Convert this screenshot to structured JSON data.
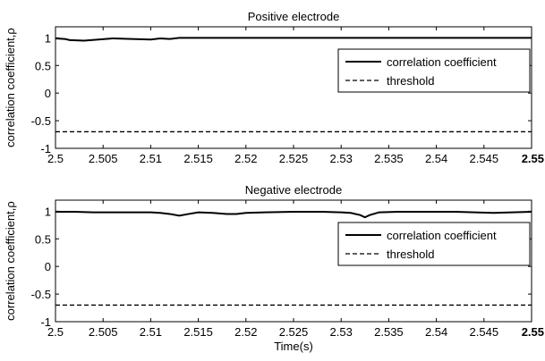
{
  "chart_data": [
    {
      "type": "line",
      "title": "Positive electrode",
      "xlabel": "",
      "ylabel": "correlation coefficient,ρ",
      "xlim": [
        2.5,
        2.55
      ],
      "ylim": [
        -1,
        1.2
      ],
      "xticks": [
        2.5,
        2.505,
        2.51,
        2.515,
        2.52,
        2.525,
        2.53,
        2.535,
        2.54,
        2.545,
        2.55
      ],
      "xtick_labels": [
        "2.5",
        "2.505",
        "2.51",
        "2.515",
        "2.52",
        "2.525",
        "2.53",
        "2.535",
        "2.54",
        "2.545",
        "2.55"
      ],
      "yticks": [
        -1,
        -0.5,
        0,
        0.5,
        1
      ],
      "ytick_labels": [
        "-1",
        "-0.5",
        "0",
        "0.5",
        "1"
      ],
      "legend": "right",
      "series": [
        {
          "name": "correlation coefficient",
          "style": "solid",
          "x": [
            2.5,
            2.501,
            2.5015,
            2.503,
            2.5045,
            2.506,
            2.508,
            2.51,
            2.511,
            2.512,
            2.513,
            2.515,
            2.52,
            2.525,
            2.53,
            2.535,
            2.54,
            2.545,
            2.55
          ],
          "y": [
            0.99,
            0.98,
            0.96,
            0.95,
            0.97,
            0.99,
            0.98,
            0.97,
            0.99,
            0.98,
            1.0,
            1.0,
            1.0,
            1.0,
            1.0,
            1.0,
            1.0,
            1.0,
            1.0
          ]
        },
        {
          "name": "threshold",
          "style": "dashed",
          "x": [
            2.5,
            2.55
          ],
          "y": [
            -0.7,
            -0.7
          ]
        }
      ]
    },
    {
      "type": "line",
      "title": "Negative electrode",
      "xlabel": "Time(s)",
      "ylabel": "correlation coefficient,ρ",
      "xlim": [
        2.5,
        2.55
      ],
      "ylim": [
        -1,
        1.2
      ],
      "xticks": [
        2.5,
        2.505,
        2.51,
        2.515,
        2.52,
        2.525,
        2.53,
        2.535,
        2.54,
        2.545,
        2.55
      ],
      "xtick_labels": [
        "2.5",
        "2.505",
        "2.51",
        "2.515",
        "2.52",
        "2.525",
        "2.53",
        "2.535",
        "2.54",
        "2.545",
        "2.55"
      ],
      "yticks": [
        -1,
        -0.5,
        0,
        0.5,
        1
      ],
      "ytick_labels": [
        "-1",
        "-0.5",
        "0",
        "0.5",
        "1"
      ],
      "legend": "right",
      "series": [
        {
          "name": "correlation coefficient",
          "style": "solid",
          "x": [
            2.5,
            2.502,
            2.504,
            2.506,
            2.508,
            2.51,
            2.511,
            2.512,
            2.513,
            2.514,
            2.515,
            2.5165,
            2.518,
            2.519,
            2.52,
            2.522,
            2.525,
            2.528,
            2.53,
            2.531,
            2.532,
            2.5325,
            2.533,
            2.534,
            2.536,
            2.538,
            2.54,
            2.542,
            2.544,
            2.546,
            2.548,
            2.55
          ],
          "y": [
            0.99,
            0.99,
            0.98,
            0.98,
            0.98,
            0.98,
            0.97,
            0.95,
            0.92,
            0.95,
            0.98,
            0.97,
            0.95,
            0.95,
            0.97,
            0.98,
            0.99,
            0.99,
            0.98,
            0.97,
            0.93,
            0.89,
            0.93,
            0.98,
            0.99,
            0.99,
            0.99,
            0.99,
            0.98,
            0.97,
            0.98,
            0.99
          ]
        },
        {
          "name": "threshold",
          "style": "dashed",
          "x": [
            2.5,
            2.55
          ],
          "y": [
            -0.7,
            -0.7
          ]
        }
      ]
    }
  ]
}
